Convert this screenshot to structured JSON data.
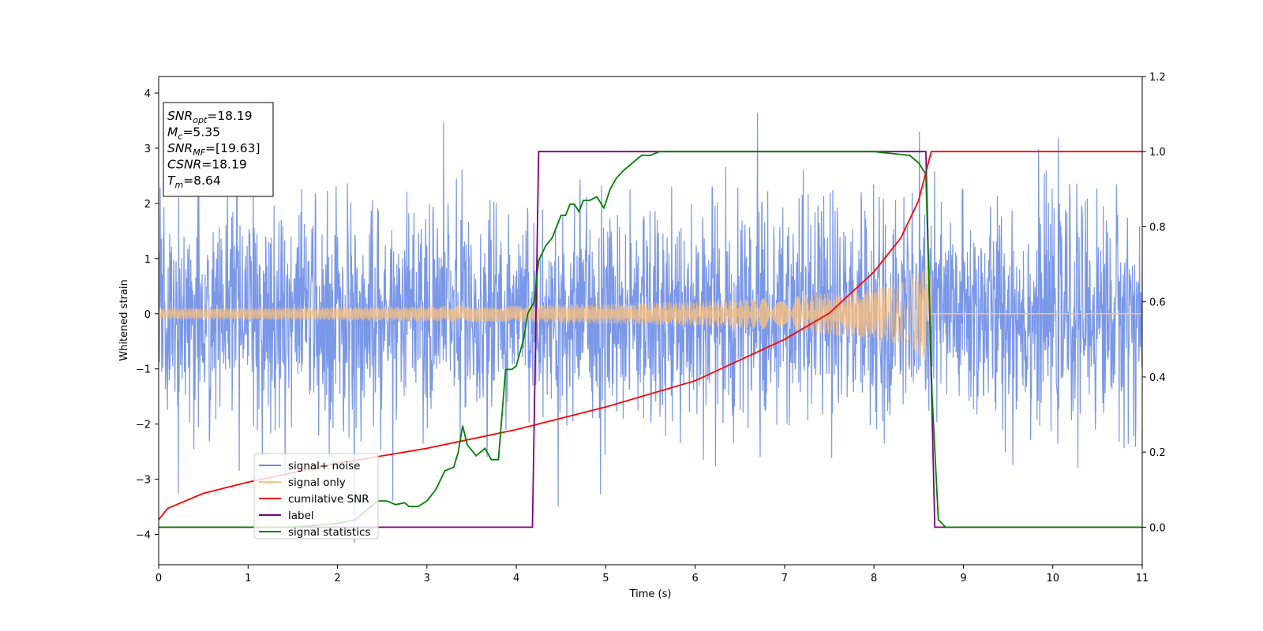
{
  "chart_data": {
    "type": "line",
    "xlabel": "Time (s)",
    "ylabel": "Whitened strain",
    "xlim": [
      0,
      11
    ],
    "ylim": [
      -4.55,
      4.3
    ],
    "y2lim": [
      -0.1,
      1.2
    ],
    "x_ticks": [
      0,
      1,
      2,
      3,
      4,
      5,
      6,
      7,
      8,
      9,
      10,
      11
    ],
    "y_ticks": [
      -4,
      -3,
      -2,
      -1,
      0,
      1,
      2,
      3,
      4
    ],
    "y2_ticks": [
      0.0,
      0.2,
      0.4,
      0.6,
      0.8,
      1.0,
      1.2
    ],
    "x_tick_labels": [
      "0",
      "1",
      "2",
      "3",
      "4",
      "5",
      "6",
      "7",
      "8",
      "9",
      "10",
      "11"
    ],
    "y_tick_labels": [
      "−4",
      "−3",
      "−2",
      "−1",
      "0",
      "1",
      "2",
      "3",
      "4"
    ],
    "y2_tick_labels": [
      "0.0",
      "0.2",
      "0.4",
      "0.6",
      "0.8",
      "1.0",
      "1.2"
    ],
    "grid": false,
    "legend_position": "lower-left",
    "series": [
      {
        "name": "signal+ noise",
        "axis": "left",
        "color": "#6b8ce6",
        "kind": "noise",
        "noise_std": 1.0,
        "y_range": [
          -4.15,
          3.9
        ],
        "x_range": [
          0,
          11
        ]
      },
      {
        "name": "signal only",
        "axis": "left",
        "color": "#ffc27a",
        "kind": "chirp",
        "t_start": 0,
        "t_merger": 8.64,
        "envelope": [
          [
            0,
            0.1
          ],
          [
            2,
            0.12
          ],
          [
            4,
            0.15
          ],
          [
            6,
            0.22
          ],
          [
            7,
            0.3
          ],
          [
            8,
            0.45
          ],
          [
            8.4,
            0.6
          ],
          [
            8.6,
            0.92
          ],
          [
            8.64,
            0.95
          ]
        ],
        "zero_after": [
          8.64,
          11
        ]
      },
      {
        "name": "cumilative SNR",
        "axis": "right",
        "color": "#ff0000",
        "kind": "line",
        "points": [
          [
            0,
            0.02
          ],
          [
            0.1,
            0.05
          ],
          [
            0.5,
            0.09
          ],
          [
            1,
            0.12
          ],
          [
            2,
            0.17
          ],
          [
            3,
            0.21
          ],
          [
            4,
            0.26
          ],
          [
            5,
            0.32
          ],
          [
            6,
            0.39
          ],
          [
            7,
            0.5
          ],
          [
            7.5,
            0.57
          ],
          [
            8,
            0.68
          ],
          [
            8.3,
            0.77
          ],
          [
            8.5,
            0.87
          ],
          [
            8.64,
            1.0
          ],
          [
            11,
            1.0
          ]
        ]
      },
      {
        "name": "label",
        "axis": "right",
        "color": "#800080",
        "kind": "line",
        "points": [
          [
            0,
            0.0
          ],
          [
            4.18,
            0.0
          ],
          [
            4.25,
            1.0
          ],
          [
            8.58,
            1.0
          ],
          [
            8.68,
            0.0
          ],
          [
            11,
            0.0
          ]
        ]
      },
      {
        "name": "signal statistics",
        "axis": "right",
        "color": "#008000",
        "kind": "line",
        "points": [
          [
            0,
            0.0
          ],
          [
            0.5,
            0.0
          ],
          [
            1,
            0.0
          ],
          [
            1.5,
            0.0
          ],
          [
            2,
            0.01
          ],
          [
            2.2,
            0.02
          ],
          [
            2.3,
            0.04
          ],
          [
            2.45,
            0.07
          ],
          [
            2.55,
            0.07
          ],
          [
            2.65,
            0.06
          ],
          [
            2.75,
            0.065
          ],
          [
            2.8,
            0.055
          ],
          [
            2.9,
            0.055
          ],
          [
            3.0,
            0.07
          ],
          [
            3.1,
            0.1
          ],
          [
            3.2,
            0.15
          ],
          [
            3.3,
            0.16
          ],
          [
            3.35,
            0.2
          ],
          [
            3.4,
            0.27
          ],
          [
            3.45,
            0.22
          ],
          [
            3.55,
            0.19
          ],
          [
            3.65,
            0.21
          ],
          [
            3.72,
            0.18
          ],
          [
            3.8,
            0.18
          ],
          [
            3.88,
            0.42
          ],
          [
            3.95,
            0.42
          ],
          [
            4.0,
            0.43
          ],
          [
            4.08,
            0.5
          ],
          [
            4.13,
            0.57
          ],
          [
            4.2,
            0.6
          ],
          [
            4.25,
            0.71
          ],
          [
            4.33,
            0.75
          ],
          [
            4.4,
            0.77
          ],
          [
            4.45,
            0.8
          ],
          [
            4.5,
            0.83
          ],
          [
            4.55,
            0.83
          ],
          [
            4.6,
            0.86
          ],
          [
            4.65,
            0.86
          ],
          [
            4.7,
            0.84
          ],
          [
            4.75,
            0.87
          ],
          [
            4.82,
            0.87
          ],
          [
            4.9,
            0.88
          ],
          [
            4.98,
            0.85
          ],
          [
            5.05,
            0.9
          ],
          [
            5.12,
            0.93
          ],
          [
            5.2,
            0.95
          ],
          [
            5.3,
            0.97
          ],
          [
            5.4,
            0.99
          ],
          [
            5.5,
            0.99
          ],
          [
            5.6,
            1.0
          ],
          [
            6.0,
            1.0
          ],
          [
            7.0,
            1.0
          ],
          [
            8.0,
            1.0
          ],
          [
            8.4,
            0.99
          ],
          [
            8.5,
            0.97
          ],
          [
            8.58,
            0.94
          ],
          [
            8.65,
            0.35
          ],
          [
            8.72,
            0.02
          ],
          [
            8.8,
            0.0
          ],
          [
            11,
            0.0
          ]
        ]
      }
    ]
  },
  "info_box": {
    "lines": [
      {
        "base": "SNR",
        "sub": "opt",
        "value": "=18.19"
      },
      {
        "base": "M",
        "sub": "c",
        "value": "=5.35"
      },
      {
        "base": "SNR",
        "sub": "MF",
        "value": "=[19.63]"
      },
      {
        "base": "CSNR",
        "sub": "",
        "value": "=18.19"
      },
      {
        "base": "T",
        "sub": "m",
        "value": "=8.64"
      }
    ]
  }
}
